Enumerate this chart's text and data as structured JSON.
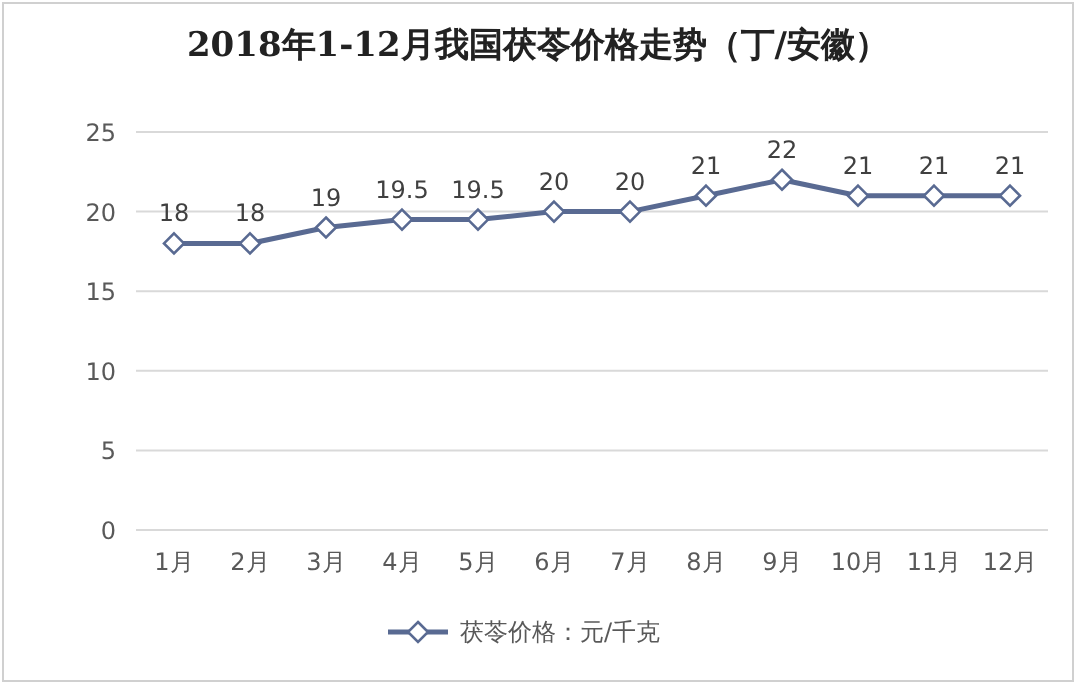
{
  "chart_data": {
    "type": "line",
    "title": "2018年1-12月我国茯苓价格走势（丁/安徽）",
    "categories": [
      "1月",
      "2月",
      "3月",
      "4月",
      "5月",
      "6月",
      "7月",
      "8月",
      "9月",
      "10月",
      "11月",
      "12月"
    ],
    "series": [
      {
        "name": "茯苓价格：元/千克",
        "color": "#596a92",
        "values": [
          18,
          18,
          19,
          19.5,
          19.5,
          20,
          20,
          21,
          22,
          21,
          21,
          21
        ]
      }
    ],
    "ylim": [
      0,
      25
    ],
    "yticks": [
      0,
      5,
      10,
      15,
      20,
      25
    ],
    "grid": "y",
    "data_labels": true,
    "marker": "diamond",
    "legend": "bottom"
  }
}
